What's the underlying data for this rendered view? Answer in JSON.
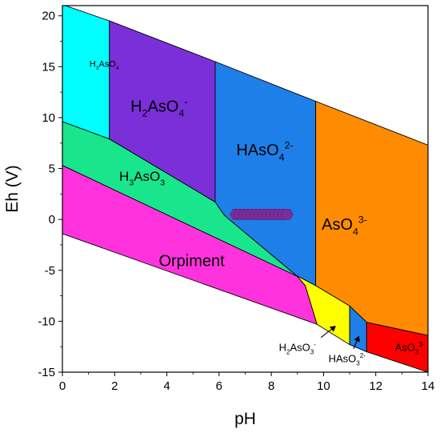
{
  "chart_data": {
    "type": "area",
    "xlabel": "pH",
    "ylabel": "Eh (V)",
    "xlim": [
      0,
      14
    ],
    "ylim": [
      -15,
      21
    ],
    "x_ticks": [
      0,
      2,
      4,
      6,
      8,
      10,
      12,
      14
    ],
    "y_ticks": [
      -15,
      -10,
      -5,
      0,
      5,
      10,
      15,
      20
    ],
    "grid": false,
    "regions": [
      {
        "id": "h3aso4",
        "label": "H3AsO4",
        "parts": [
          [
            "H",
            ""
          ],
          [
            "3",
            "sub"
          ],
          [
            "AsO",
            ""
          ],
          [
            "4",
            "sub"
          ]
        ],
        "font_size": 11,
        "label_pos": [
          1.6,
          15.0
        ],
        "color": "#00FFFF",
        "polygon": [
          [
            0,
            21.1
          ],
          [
            1.8,
            19.5
          ],
          [
            1.8,
            7.9
          ],
          [
            0,
            9.6
          ]
        ]
      },
      {
        "id": "h2aso4",
        "label": "H2AsO4-",
        "parts": [
          [
            "H",
            ""
          ],
          [
            "2",
            "sub"
          ],
          [
            "AsO",
            ""
          ],
          [
            "4",
            "sub"
          ],
          [
            "-",
            "sup"
          ]
        ],
        "font_size": 20,
        "label_pos": [
          3.7,
          10.6
        ],
        "color": "#7B2FD8",
        "polygon": [
          [
            1.8,
            19.5
          ],
          [
            5.85,
            15.5
          ],
          [
            5.85,
            1.7
          ],
          [
            1.8,
            7.9
          ]
        ]
      },
      {
        "id": "haso4",
        "label": "HAsO42-",
        "parts": [
          [
            "HAsO",
            ""
          ],
          [
            "4",
            "sub"
          ],
          [
            "2-",
            "sup"
          ]
        ],
        "font_size": 20,
        "label_pos": [
          7.75,
          6.3
        ],
        "color": "#1E7FE8",
        "polygon": [
          [
            5.85,
            15.5
          ],
          [
            9.7,
            11.6
          ],
          [
            9.7,
            -6.5
          ],
          [
            8.95,
            -5.5
          ],
          [
            6.2,
            0.4
          ],
          [
            5.85,
            1.7
          ]
        ]
      },
      {
        "id": "aso4",
        "label": "AsO43-",
        "parts": [
          [
            "AsO",
            ""
          ],
          [
            "4",
            "sub"
          ],
          [
            "3-",
            "sup"
          ]
        ],
        "font_size": 20,
        "label_pos": [
          10.8,
          -1.0
        ],
        "color": "#FF8C00",
        "polygon": [
          [
            9.7,
            11.6
          ],
          [
            14,
            7.3
          ],
          [
            14,
            -11.4
          ],
          [
            11.65,
            -10.1
          ],
          [
            11.0,
            -8.5
          ],
          [
            9.7,
            -6.5
          ]
        ]
      },
      {
        "id": "h3aso3",
        "label": "H3AsO3",
        "parts": [
          [
            "H",
            ""
          ],
          [
            "3",
            "sub"
          ],
          [
            "AsO",
            ""
          ],
          [
            "3",
            "sub"
          ]
        ],
        "font_size": 17,
        "label_pos": [
          3.05,
          3.8
        ],
        "color": "#19E68C",
        "polygon": [
          [
            0,
            9.6
          ],
          [
            1.8,
            7.9
          ],
          [
            5.85,
            1.7
          ],
          [
            6.2,
            0.4
          ],
          [
            8.95,
            -5.5
          ],
          [
            9.0,
            -5.6
          ],
          [
            0,
            5.3
          ]
        ]
      },
      {
        "id": "orpiment",
        "label": "Orpiment",
        "parts": [
          [
            "Orpiment",
            ""
          ]
        ],
        "font_size": 20,
        "label_pos": [
          4.95,
          -4.6
        ],
        "color": "#FF33DD",
        "polygon": [
          [
            0,
            5.3
          ],
          [
            9.0,
            -5.6
          ],
          [
            9.3,
            -6.5
          ],
          [
            9.75,
            -10.3
          ],
          [
            0,
            -1.4
          ]
        ]
      },
      {
        "id": "h2aso3",
        "label": "H2AsO3-",
        "parts": [],
        "font_size": 13,
        "label_pos": [
          9.0,
          -12.9
        ],
        "color": "#FFFF00",
        "polygon": [
          [
            8.95,
            -5.5
          ],
          [
            9.7,
            -6.5
          ],
          [
            11.0,
            -8.5
          ],
          [
            11.0,
            -12.3
          ],
          [
            9.75,
            -10.3
          ],
          [
            9.3,
            -6.5
          ],
          [
            9.0,
            -5.6
          ]
        ]
      },
      {
        "id": "haso3",
        "label": "HAsO32-",
        "parts": [],
        "font_size": 13,
        "label_pos": [
          10.9,
          -14.0
        ],
        "color": "#1E7FE8",
        "polygon": [
          [
            11.0,
            -8.5
          ],
          [
            11.65,
            -10.1
          ],
          [
            11.65,
            -13.0
          ],
          [
            11.0,
            -12.3
          ]
        ]
      },
      {
        "id": "aso3",
        "label": "AsO33-",
        "parts": [
          [
            "AsO",
            ""
          ],
          [
            "3",
            "sub"
          ],
          [
            "3-",
            "sup"
          ]
        ],
        "font_size": 13,
        "label_pos": [
          13.3,
          -12.9
        ],
        "color": "#FF0000",
        "polygon": [
          [
            11.65,
            -10.1
          ],
          [
            14,
            -11.4
          ],
          [
            14,
            -15.0
          ],
          [
            11.65,
            -13.0
          ]
        ]
      }
    ],
    "labels_extra": [
      {
        "id": "h2aso3-label",
        "parts": [
          [
            "H",
            ""
          ],
          [
            "2",
            "sub"
          ],
          [
            "AsO",
            ""
          ],
          [
            "3",
            "sub"
          ],
          [
            "-",
            "sup"
          ]
        ],
        "font_size": 13,
        "pos": [
          9.0,
          -12.9
        ],
        "arrow": [
          [
            9.9,
            -11.6
          ],
          [
            10.45,
            -10.5
          ]
        ]
      },
      {
        "id": "haso3-label",
        "parts": [
          [
            "HAsO",
            ""
          ],
          [
            "3",
            "sub"
          ],
          [
            "2-",
            "sup"
          ]
        ],
        "font_size": 13,
        "pos": [
          10.9,
          -14.0
        ],
        "arrow": [
          [
            11.15,
            -12.7
          ],
          [
            11.35,
            -11.5
          ]
        ]
      }
    ],
    "markers": {
      "color": "#7A2E9A",
      "y": 0.5,
      "x": [
        6.65,
        6.8,
        6.95,
        7.1,
        7.25,
        7.4,
        7.55,
        7.7,
        7.85,
        8.0,
        8.15,
        8.3,
        8.45,
        8.6
      ]
    }
  }
}
